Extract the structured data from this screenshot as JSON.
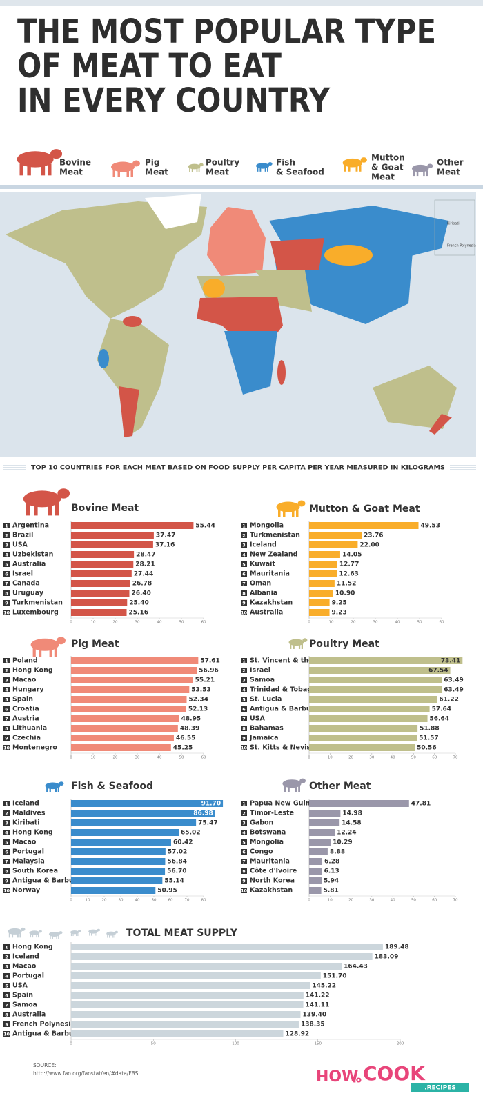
{
  "header": {
    "title": [
      "THE MOST POPULAR TYPE",
      "OF MEAT TO EAT",
      "IN EVERY COUNTRY"
    ]
  },
  "legend": [
    {
      "label": [
        "Bovine",
        "Meat"
      ],
      "color": "#d35548"
    },
    {
      "label": [
        "Pig",
        "Meat"
      ],
      "color": "#f08a78"
    },
    {
      "label": [
        "Poultry",
        "Meat"
      ],
      "color": "#bfbf8c"
    },
    {
      "label": [
        "Fish",
        "& Seafood"
      ],
      "color": "#3a8ccc"
    },
    {
      "label": [
        "Mutton",
        "& Goat",
        "Meat"
      ],
      "color": "#f9ad2a"
    },
    {
      "label": [
        "Other",
        "Meat"
      ],
      "color": "#9a97aa"
    }
  ],
  "map": {
    "labels": [
      "Kiribati",
      "French Polynesia"
    ]
  },
  "subtitle": "TOP 10 COUNTRIES FOR EACH MEAT BASED ON FOOD SUPPLY PER CAPITA PER YEAR MEASURED IN KILOGRAMS",
  "ranks": [
    1,
    2,
    3,
    4,
    5,
    6,
    7,
    8,
    9,
    10
  ],
  "chart_data": [
    {
      "type": "bar",
      "title": "Bovine Meat",
      "color": "#d35548",
      "categories": [
        "Argentina",
        "Brazil",
        "USA",
        "Uzbekistan",
        "Australia",
        "Israel",
        "Canada",
        "Uruguay",
        "Turkmenistan",
        "Luxembourg"
      ],
      "values": [
        55.44,
        37.47,
        37.16,
        28.47,
        28.21,
        27.44,
        26.78,
        26.4,
        25.4,
        25.16
      ],
      "value_labels": [
        "55.44",
        "37.47",
        "37.16",
        "28.47",
        "28.21",
        "27.44",
        "26.78",
        "26.40",
        "25.40",
        "25.16"
      ],
      "xlim": [
        0,
        60
      ],
      "xticks": [
        0,
        10,
        20,
        30,
        40,
        50,
        60
      ]
    },
    {
      "type": "bar",
      "title": "Mutton & Goat Meat",
      "color": "#f9ad2a",
      "categories": [
        "Mongolia",
        "Turkmenistan",
        "Iceland",
        "New Zealand",
        "Kuwait",
        "Mauritania",
        "Oman",
        "Albania",
        "Kazakhstan",
        "Australia"
      ],
      "values": [
        49.53,
        23.76,
        22.0,
        14.05,
        12.77,
        12.63,
        11.52,
        10.9,
        9.25,
        9.23
      ],
      "value_labels": [
        "49.53",
        "23.76",
        "22.00",
        "14.05",
        "12.77",
        "12.63",
        "11.52",
        "10.90",
        "9.25",
        "9.23"
      ],
      "xlim": [
        0,
        60
      ],
      "xticks": [
        0,
        10,
        20,
        30,
        40,
        50,
        60
      ]
    },
    {
      "type": "bar",
      "title": "Pig Meat",
      "color": "#f08a78",
      "categories": [
        "Poland",
        "Hong Kong",
        "Macao",
        "Hungary",
        "Spain",
        "Croatia",
        "Austria",
        "Lithuania",
        "Czechia",
        "Montenegro"
      ],
      "values": [
        57.61,
        56.96,
        55.21,
        53.53,
        52.34,
        52.13,
        48.95,
        48.39,
        46.55,
        45.25
      ],
      "xlim": [
        0,
        60
      ],
      "xticks": [
        0,
        10,
        20,
        30,
        40,
        50,
        60
      ]
    },
    {
      "type": "bar",
      "title": "Poultry Meat",
      "color": "#bfbf8c",
      "categories": [
        "St. Vincent & the Grenadines",
        "Israel",
        "Samoa",
        "Trinidad & Tobago",
        "St. Lucia",
        "Antigua & Barbuda",
        "USA",
        "Bahamas",
        "Jamaica",
        "St. Kitts & Nevis"
      ],
      "values": [
        73.41,
        67.54,
        63.49,
        63.49,
        61.22,
        57.64,
        56.64,
        51.88,
        51.57,
        50.56
      ],
      "xlim": [
        0,
        70
      ],
      "xticks": [
        0,
        10,
        20,
        30,
        40,
        50,
        60,
        70
      ]
    },
    {
      "type": "bar",
      "title": "Fish & Seafood",
      "color": "#3a8ccc",
      "categories": [
        "Iceland",
        "Maldives",
        "Kiribati",
        "Hong Kong",
        "Macao",
        "Portugal",
        "Malaysia",
        "South Korea",
        "Antigua & Barbuda",
        "Norway"
      ],
      "values": [
        91.7,
        86.98,
        75.47,
        65.02,
        60.42,
        57.02,
        56.84,
        56.7,
        55.14,
        50.95
      ],
      "value_labels": [
        "91.70",
        "86.98",
        "75.47",
        "65.02",
        "60.42",
        "57.02",
        "56.84",
        "56.70",
        "55.14",
        "50.95"
      ],
      "xlim": [
        0,
        80
      ],
      "xticks": [
        0,
        10,
        20,
        30,
        40,
        50,
        60,
        70,
        80
      ]
    },
    {
      "type": "bar",
      "title": "Other Meat",
      "color": "#9a97aa",
      "categories": [
        "Papua New Guinea",
        "Timor-Leste",
        "Gabon",
        "Botswana",
        "Mongolia",
        "Congo",
        "Mauritania",
        "Côte d'Ivoire",
        "North Korea",
        "Kazakhstan"
      ],
      "values": [
        47.81,
        14.98,
        14.58,
        12.24,
        10.29,
        8.88,
        6.28,
        6.13,
        5.94,
        5.81
      ],
      "xlim": [
        0,
        70
      ],
      "xticks": [
        0,
        10,
        20,
        30,
        40,
        50,
        60,
        70
      ]
    },
    {
      "type": "bar",
      "title": "TOTAL MEAT SUPPLY",
      "color": "#ccd6dc",
      "categories": [
        "Hong Kong",
        "Iceland",
        "Macao",
        "Portugal",
        "USA",
        "Spain",
        "Samoa",
        "Australia",
        "French Polynesia",
        "Antigua & Barbuda"
      ],
      "values": [
        189.48,
        183.09,
        164.43,
        151.7,
        145.22,
        141.22,
        141.11,
        139.4,
        138.35,
        128.92
      ],
      "value_labels": [
        "189.48",
        "183.09",
        "164.43",
        "151.70",
        "145.22",
        "141.22",
        "141.11",
        "139.40",
        "138.35",
        "128.92"
      ],
      "xlim": [
        0,
        200
      ],
      "xticks": [
        0,
        50,
        100,
        150,
        200
      ]
    }
  ],
  "footer": {
    "source": "SOURCE:",
    "url": "http://www.fao.org/faostat/en/#data/FBS",
    "logo": {
      "how": "HOW",
      "to": "to",
      "cook": "COOK",
      "recipes": ".RECIPES"
    }
  }
}
